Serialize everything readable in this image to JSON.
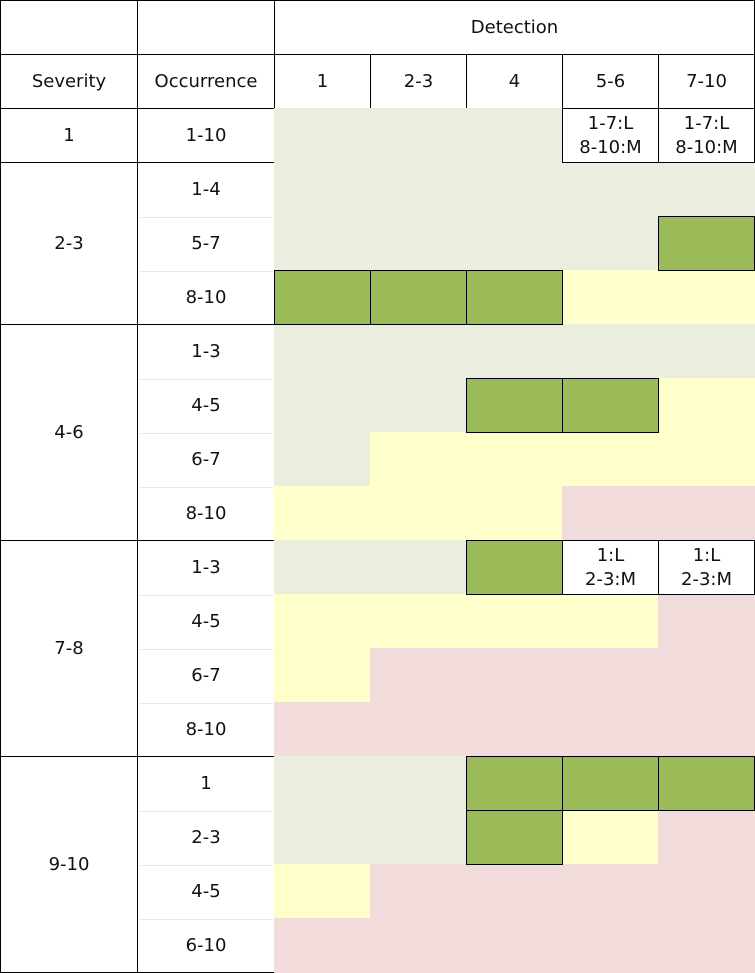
{
  "header": {
    "detection": "Detection",
    "severity": "Severity",
    "occurrence": "Occurrence",
    "detection_levels": [
      "1",
      "2-3",
      "4",
      "5-6",
      "7-10"
    ]
  },
  "groups": [
    {
      "severity": "1",
      "rows": [
        {
          "occurrence": "1-10",
          "labels": {
            "3": [
              "1-7:L",
              "8-10:M"
            ],
            "4": [
              "1-7:L",
              "8-10:M"
            ]
          }
        }
      ]
    },
    {
      "severity": "2-3",
      "rows": [
        {
          "occurrence": "1-4"
        },
        {
          "occurrence": "5-7"
        },
        {
          "occurrence": "8-10"
        }
      ]
    },
    {
      "severity": "4-6",
      "rows": [
        {
          "occurrence": "1-3"
        },
        {
          "occurrence": "4-5"
        },
        {
          "occurrence": "6-7"
        },
        {
          "occurrence": "8-10"
        }
      ]
    },
    {
      "severity": "7-8",
      "rows": [
        {
          "occurrence": "1-3",
          "labels": {
            "3": [
              "1:L",
              "2-3:M"
            ],
            "4": [
              "1:L",
              "2-3:M"
            ]
          }
        },
        {
          "occurrence": "4-5"
        },
        {
          "occurrence": "6-7"
        },
        {
          "occurrence": "8-10"
        }
      ]
    },
    {
      "severity": "9-10",
      "rows": [
        {
          "occurrence": "1"
        },
        {
          "occurrence": "2-3"
        },
        {
          "occurrence": "4-5"
        },
        {
          "occurrence": "6-10"
        }
      ]
    }
  ]
}
